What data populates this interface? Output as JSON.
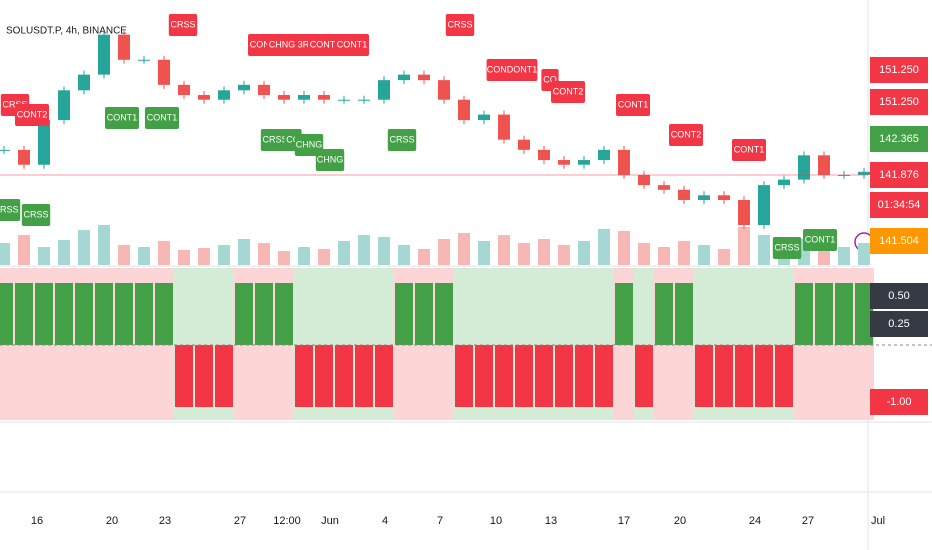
{
  "chart_data": {
    "type": "candlestick",
    "title": "SOLUSDT.P, 4h, BINANCE",
    "close": [
      144.7,
      142.8,
      148.5,
      152.3,
      154.3,
      159.4,
      156.2,
      156.2,
      153.0,
      151.7,
      151.1,
      152.3,
      153.0,
      151.7,
      151.1,
      151.7,
      151.1,
      151.1,
      151.1,
      153.6,
      154.3,
      153.6,
      151.1,
      148.5,
      149.2,
      146.0,
      144.7,
      143.4,
      142.8,
      143.4,
      144.7,
      141.5,
      140.2,
      139.6,
      138.3,
      138.9,
      138.3,
      135.1,
      140.2,
      140.9,
      144.0,
      141.5,
      141.5,
      141.9
    ],
    "volume": [
      22,
      30,
      18,
      25,
      35,
      40,
      20,
      18,
      24,
      15,
      17,
      20,
      26,
      22,
      14,
      18,
      16,
      24,
      30,
      28,
      20,
      16,
      26,
      32,
      24,
      30,
      22,
      26,
      20,
      24,
      36,
      34,
      22,
      18,
      24,
      20,
      16,
      38,
      30,
      28,
      26,
      20,
      18,
      22
    ],
    "signal": [
      1,
      1,
      1,
      1,
      1,
      1,
      1,
      1,
      1,
      -1,
      -1,
      -1,
      1,
      1,
      1,
      -1,
      -1,
      -1,
      -1,
      -1,
      1,
      1,
      1,
      -1,
      -1,
      -1,
      -1,
      -1,
      -1,
      -1,
      -1,
      1,
      -1,
      1,
      1,
      -1,
      -1,
      -1,
      -1,
      -1,
      1,
      1,
      1,
      1
    ],
    "up_color": "#26a69a",
    "down_color": "#ef5350",
    "ylim": [
      130,
      160
    ],
    "signal_ylim": [
      -1,
      1
    ],
    "annotations": [
      {
        "text": "CRSS",
        "color": "#f23645"
      },
      {
        "text": "CONT1",
        "color": "#f23645"
      },
      {
        "text": "CHNG 3RSS",
        "color": "#f23645"
      },
      {
        "text": "CONT2",
        "color": "#f23645"
      },
      {
        "text": "CONT1",
        "color": "#f23645"
      },
      {
        "text": "CRSS",
        "color": "#f23645"
      },
      {
        "text": "CONDONT1",
        "color": "#f23645"
      },
      {
        "text": "CO",
        "color": "#f23645"
      },
      {
        "text": "CONT2",
        "color": "#f23645"
      },
      {
        "text": "CONT1",
        "color": "#f23645"
      },
      {
        "text": "CONT2",
        "color": "#f23645"
      },
      {
        "text": "CONT1",
        "color": "#f23645"
      },
      {
        "text": "CRSS",
        "color": "#f23645"
      },
      {
        "text": "CONT2",
        "color": "#f23645"
      },
      {
        "text": "CONT1",
        "color": "#43a047"
      },
      {
        "text": "CONT1",
        "color": "#43a047"
      },
      {
        "text": "CRSS",
        "color": "#43a047"
      },
      {
        "text": "CO",
        "color": "#43a047"
      },
      {
        "text": "CHNG",
        "color": "#43a047"
      },
      {
        "text": "CHNG",
        "color": "#43a047"
      },
      {
        "text": "CRSS",
        "color": "#43a047"
      },
      {
        "text": "CRSS",
        "color": "#43a047"
      },
      {
        "text": "CRSS",
        "color": "#43a047"
      },
      {
        "text": "CRSS",
        "color": "#43a047"
      },
      {
        "text": "CONT1",
        "color": "#43a047"
      }
    ],
    "price_badges": [
      {
        "text": "151.250",
        "color": "#f23645"
      },
      {
        "text": "151.250",
        "color": "#f23645"
      },
      {
        "text": "142.365",
        "color": "#43a047"
      },
      {
        "text": "141.876",
        "color": "#f23645"
      },
      {
        "text": "01:34:54",
        "color": "#f23645"
      },
      {
        "text": "141.504",
        "color": "#ff9800"
      },
      {
        "text": "0.50",
        "color": "#363a45"
      },
      {
        "text": "0.25",
        "color": "#363a45"
      },
      {
        "text": "-1.00",
        "color": "#f23645"
      }
    ],
    "x_labels": [
      "16",
      "20",
      "23",
      "27",
      "12:00",
      "Jun",
      "4",
      "7",
      "10",
      "13",
      "17",
      "20",
      "24",
      "27",
      "Jul"
    ]
  }
}
